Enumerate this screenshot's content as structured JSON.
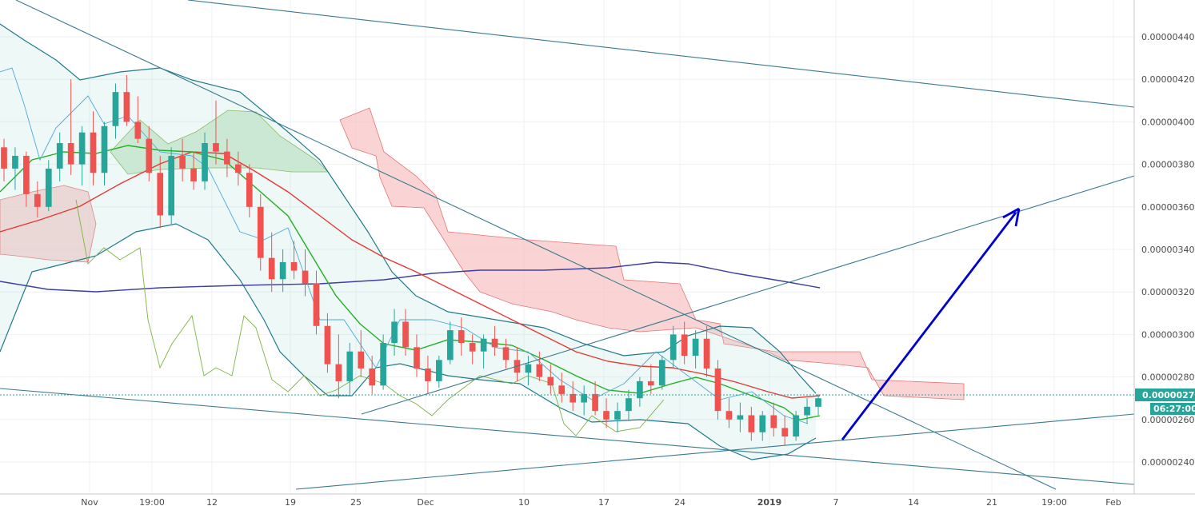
{
  "chart_data": {
    "type": "candlestick",
    "title": "",
    "xlabel": "",
    "ylabel": "",
    "ylim": [
      2.25e-06,
      4.55e-06
    ],
    "y_ticks": [
      "0.00000240",
      "0.00000260",
      "0.00000280",
      "0.00000300",
      "0.00000320",
      "0.00000340",
      "0.00000360",
      "0.00000380",
      "0.00000400",
      "0.00000420",
      "0.00000440"
    ],
    "x_ticks": [
      "Nov",
      "19:00",
      "12",
      "19",
      "25",
      "Dec",
      "10",
      "17",
      "24",
      "2019",
      "7",
      "14",
      "21",
      "19:00",
      "Feb"
    ],
    "grid": true,
    "last_price": "0.00000270",
    "countdown": "06:27:00",
    "colors": {
      "up": "#26a69a",
      "down": "#ef5350",
      "cloud_bear": "#f8c5c5",
      "cloud_bull": "#c8e6c9",
      "bollinger": "#1f7a8c",
      "ma_red": "#e53935",
      "ma_green": "#22b022",
      "ma_blue": "#3f3fa0",
      "trendline": "#3b7a8f",
      "arrow": "#0000d0",
      "price_tag": "#26a69a"
    },
    "candles": [
      [
        3.88e-06,
        3.92e-06,
        3.72e-06,
        3.78e-06
      ],
      [
        3.78e-06,
        3.88e-06,
        3.68e-06,
        3.84e-06
      ],
      [
        3.84e-06,
        3.86e-06,
        3.6e-06,
        3.66e-06
      ],
      [
        3.66e-06,
        3.72e-06,
        3.55e-06,
        3.6e-06
      ],
      [
        3.6e-06,
        3.82e-06,
        3.58e-06,
        3.78e-06
      ],
      [
        3.78e-06,
        3.95e-06,
        3.72e-06,
        3.9e-06
      ],
      [
        3.9e-06,
        4.2e-06,
        3.75e-06,
        3.8e-06
      ],
      [
        3.8e-06,
        3.98e-06,
        3.7e-06,
        3.95e-06
      ],
      [
        3.95e-06,
        4.05e-06,
        3.7e-06,
        3.76e-06
      ],
      [
        3.76e-06,
        4e-06,
        3.7e-06,
        3.98e-06
      ],
      [
        3.98e-06,
        4.18e-06,
        3.92e-06,
        4.14e-06
      ],
      [
        4.14e-06,
        4.22e-06,
        3.98e-06,
        4e-06
      ],
      [
        4e-06,
        4.12e-06,
        3.9e-06,
        3.92e-06
      ],
      [
        3.92e-06,
        3.98e-06,
        3.72e-06,
        3.76e-06
      ],
      [
        3.76e-06,
        3.84e-06,
        3.5e-06,
        3.56e-06
      ],
      [
        3.56e-06,
        3.88e-06,
        3.52e-06,
        3.84e-06
      ],
      [
        3.84e-06,
        3.92e-06,
        3.72e-06,
        3.78e-06
      ],
      [
        3.78e-06,
        3.86e-06,
        3.68e-06,
        3.72e-06
      ],
      [
        3.72e-06,
        3.95e-06,
        3.68e-06,
        3.9e-06
      ],
      [
        3.9e-06,
        4.1e-06,
        3.8e-06,
        3.86e-06
      ],
      [
        3.86e-06,
        3.92e-06,
        3.74e-06,
        3.8e-06
      ],
      [
        3.8e-06,
        3.86e-06,
        3.7e-06,
        3.76e-06
      ],
      [
        3.76e-06,
        3.8e-06,
        3.55e-06,
        3.6e-06
      ],
      [
        3.6e-06,
        3.66e-06,
        3.3e-06,
        3.36e-06
      ],
      [
        3.36e-06,
        3.48e-06,
        3.2e-06,
        3.26e-06
      ],
      [
        3.26e-06,
        3.4e-06,
        3.2e-06,
        3.34e-06
      ],
      [
        3.34e-06,
        3.44e-06,
        3.26e-06,
        3.3e-06
      ],
      [
        3.3e-06,
        3.4e-06,
        3.18e-06,
        3.24e-06
      ],
      [
        3.24e-06,
        3.3e-06,
        3e-06,
        3.04e-06
      ],
      [
        3.04e-06,
        3.1e-06,
        2.82e-06,
        2.86e-06
      ],
      [
        2.86e-06,
        3e-06,
        2.7e-06,
        2.78e-06
      ],
      [
        2.78e-06,
        2.96e-06,
        2.72e-06,
        2.92e-06
      ],
      [
        2.92e-06,
        3.02e-06,
        2.8e-06,
        2.84e-06
      ],
      [
        2.84e-06,
        2.9e-06,
        2.72e-06,
        2.76e-06
      ],
      [
        2.76e-06,
        3e-06,
        2.74e-06,
        2.96e-06
      ],
      [
        2.96e-06,
        3.12e-06,
        2.9e-06,
        3.06e-06
      ],
      [
        3.06e-06,
        3.12e-06,
        2.9e-06,
        2.94e-06
      ],
      [
        2.94e-06,
        3e-06,
        2.8e-06,
        2.84e-06
      ],
      [
        2.84e-06,
        2.9e-06,
        2.72e-06,
        2.78e-06
      ],
      [
        2.78e-06,
        2.9e-06,
        2.75e-06,
        2.88e-06
      ],
      [
        2.88e-06,
        3.06e-06,
        2.86e-06,
        3.02e-06
      ],
      [
        3.02e-06,
        3.08e-06,
        2.9e-06,
        2.96e-06
      ],
      [
        2.96e-06,
        3e-06,
        2.86e-06,
        2.92e-06
      ],
      [
        2.92e-06,
        3e-06,
        2.84e-06,
        2.98e-06
      ],
      [
        2.98e-06,
        3.04e-06,
        2.9e-06,
        2.94e-06
      ],
      [
        2.94e-06,
        2.98e-06,
        2.84e-06,
        2.88e-06
      ],
      [
        2.88e-06,
        2.94e-06,
        2.78e-06,
        2.82e-06
      ],
      [
        2.82e-06,
        2.9e-06,
        2.76e-06,
        2.86e-06
      ],
      [
        2.86e-06,
        2.92e-06,
        2.78e-06,
        2.8e-06
      ],
      [
        2.8e-06,
        2.86e-06,
        2.72e-06,
        2.76e-06
      ],
      [
        2.76e-06,
        2.82e-06,
        2.68e-06,
        2.72e-06
      ],
      [
        2.72e-06,
        2.78e-06,
        2.64e-06,
        2.68e-06
      ],
      [
        2.68e-06,
        2.76e-06,
        2.62e-06,
        2.72e-06
      ],
      [
        2.72e-06,
        2.78e-06,
        2.62e-06,
        2.64e-06
      ],
      [
        2.64e-06,
        2.7e-06,
        2.56e-06,
        2.6e-06
      ],
      [
        2.6e-06,
        2.68e-06,
        2.54e-06,
        2.64e-06
      ],
      [
        2.64e-06,
        2.74e-06,
        2.6e-06,
        2.7e-06
      ],
      [
        2.7e-06,
        2.8e-06,
        2.66e-06,
        2.78e-06
      ],
      [
        2.78e-06,
        2.86e-06,
        2.72e-06,
        2.76e-06
      ],
      [
        2.76e-06,
        2.9e-06,
        2.74e-06,
        2.88e-06
      ],
      [
        2.88e-06,
        3.04e-06,
        2.84e-06,
        3e-06
      ],
      [
        3e-06,
        3.06e-06,
        2.86e-06,
        2.9e-06
      ],
      [
        2.9e-06,
        3.02e-06,
        2.84e-06,
        2.98e-06
      ],
      [
        2.98e-06,
        3.04e-06,
        2.8e-06,
        2.84e-06
      ],
      [
        2.84e-06,
        2.88e-06,
        2.6e-06,
        2.64e-06
      ],
      [
        2.64e-06,
        2.7e-06,
        2.56e-06,
        2.6e-06
      ],
      [
        2.6e-06,
        2.68e-06,
        2.54e-06,
        2.62e-06
      ],
      [
        2.62e-06,
        2.66e-06,
        2.5e-06,
        2.54e-06
      ],
      [
        2.54e-06,
        2.64e-06,
        2.5e-06,
        2.62e-06
      ],
      [
        2.62e-06,
        2.68e-06,
        2.52e-06,
        2.56e-06
      ],
      [
        2.56e-06,
        2.62e-06,
        2.48e-06,
        2.52e-06
      ],
      [
        2.52e-06,
        2.64e-06,
        2.5e-06,
        2.62e-06
      ],
      [
        2.62e-06,
        2.7e-06,
        2.58e-06,
        2.66e-06
      ],
      [
        2.66e-06,
        2.72e-06,
        2.62e-06,
        2.7e-06
      ]
    ]
  }
}
